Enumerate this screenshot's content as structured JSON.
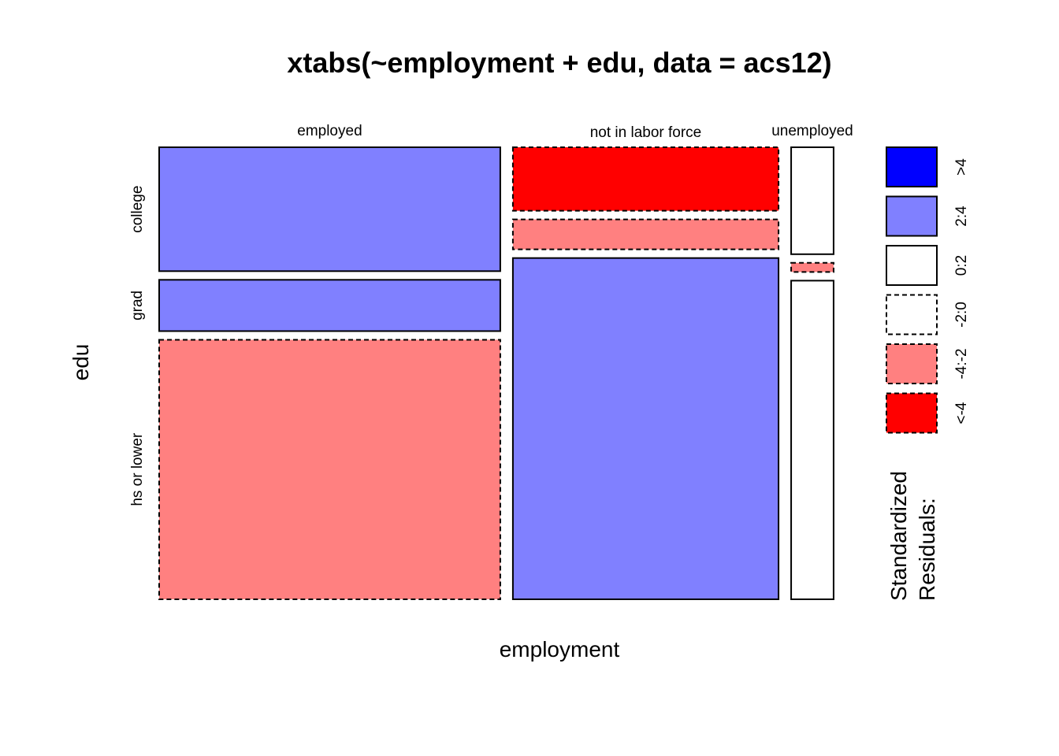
{
  "chart_data": {
    "type": "mosaic",
    "title": "xtabs(~employment + edu, data = acs12)",
    "xlabel": "employment",
    "ylabel": "edu",
    "x_categories": [
      "employed",
      "not in labor force",
      "unemployed"
    ],
    "y_categories": [
      "college",
      "grad",
      "hs or lower"
    ],
    "column_proportions": [
      0.5425,
      0.4225,
      0.0675
    ],
    "cells": [
      {
        "employment": "employed",
        "edu": "college",
        "proportion": 0.285,
        "residual_range": "2:4"
      },
      {
        "employment": "employed",
        "edu": "grad",
        "proportion": 0.118,
        "residual_range": "2:4"
      },
      {
        "employment": "employed",
        "edu": "hs or lower",
        "proportion": 0.597,
        "residual_range": "-4:-2"
      },
      {
        "employment": "not in labor force",
        "edu": "college",
        "proportion": 0.146,
        "residual_range": "<-4"
      },
      {
        "employment": "not in labor force",
        "edu": "grad",
        "proportion": 0.069,
        "residual_range": "-4:-2"
      },
      {
        "employment": "not in labor force",
        "edu": "hs or lower",
        "proportion": 0.785,
        "residual_range": "2:4"
      },
      {
        "employment": "unemployed",
        "edu": "college",
        "proportion": 0.246,
        "residual_range": "0:2"
      },
      {
        "employment": "unemployed",
        "edu": "grad",
        "proportion": 0.021,
        "residual_range": "-4:-2"
      },
      {
        "employment": "unemployed",
        "edu": "hs or lower",
        "proportion": 0.733,
        "residual_range": "0:2"
      }
    ],
    "legend": {
      "title_lines": [
        "Standardized",
        "Residuals:"
      ],
      "placement": "right",
      "entries": [
        {
          "label": ">4",
          "color": "#0000FF",
          "dashed": false
        },
        {
          "label": "2:4",
          "color": "#8080FF",
          "dashed": false
        },
        {
          "label": "0:2",
          "color": "#FFFFFF",
          "dashed": false
        },
        {
          "label": "-2:0",
          "color": "#FFFFFF",
          "dashed": true
        },
        {
          "label": "-4:-2",
          "color": "#FF8080",
          "dashed": true
        },
        {
          "label": "<-4",
          "color": "#FF0000",
          "dashed": true
        }
      ]
    }
  }
}
